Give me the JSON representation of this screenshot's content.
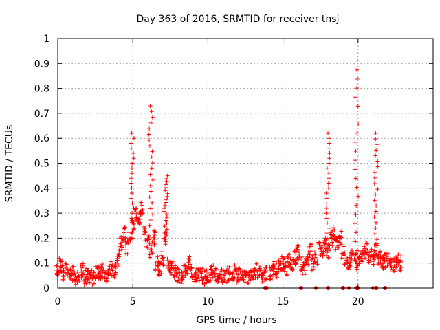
{
  "chart_data": {
    "type": "scatter",
    "title": "Day 363 of 2016, SRMTID for receiver tnsj",
    "xlabel": "GPS time / hours",
    "ylabel": "SRMTID / TECUs",
    "xlim": [
      0,
      25
    ],
    "ylim": [
      0,
      1
    ],
    "xticks": [
      0,
      5,
      10,
      15,
      20
    ],
    "yticks": [
      0,
      0.1,
      0.2,
      0.3,
      0.4,
      0.5,
      0.6,
      0.7,
      0.8,
      0.9,
      1
    ],
    "grid": true,
    "legend": "none",
    "marker": "+",
    "series_color": "#ff0000",
    "background_points": [
      [
        0.0,
        0.07
      ],
      [
        0.2,
        0.09
      ],
      [
        0.4,
        0.06
      ],
      [
        0.6,
        0.08
      ],
      [
        0.8,
        0.05
      ],
      [
        1.0,
        0.06
      ],
      [
        1.2,
        0.04
      ],
      [
        1.4,
        0.05
      ],
      [
        1.6,
        0.07
      ],
      [
        1.8,
        0.04
      ],
      [
        2.0,
        0.06
      ],
      [
        2.2,
        0.05
      ],
      [
        2.4,
        0.04
      ],
      [
        2.6,
        0.06
      ],
      [
        2.8,
        0.05
      ],
      [
        3.0,
        0.07
      ],
      [
        3.2,
        0.05
      ],
      [
        3.4,
        0.06
      ],
      [
        3.6,
        0.08
      ],
      [
        3.8,
        0.07
      ],
      [
        4.0,
        0.12
      ],
      [
        4.2,
        0.18
      ],
      [
        4.4,
        0.22
      ],
      [
        4.6,
        0.16
      ],
      [
        4.8,
        0.2
      ],
      [
        5.0,
        0.25
      ],
      [
        5.2,
        0.3
      ],
      [
        5.4,
        0.28
      ],
      [
        5.6,
        0.32
      ],
      [
        5.8,
        0.22
      ],
      [
        6.0,
        0.18
      ],
      [
        6.2,
        0.15
      ],
      [
        6.4,
        0.2
      ],
      [
        6.6,
        0.1
      ],
      [
        6.8,
        0.08
      ],
      [
        7.0,
        0.12
      ],
      [
        7.2,
        0.2
      ],
      [
        7.4,
        0.1
      ],
      [
        7.6,
        0.08
      ],
      [
        7.8,
        0.06
      ],
      [
        8.0,
        0.05
      ],
      [
        8.2,
        0.04
      ],
      [
        8.4,
        0.06
      ],
      [
        8.6,
        0.08
      ],
      [
        8.8,
        0.1
      ],
      [
        9.0,
        0.07
      ],
      [
        9.2,
        0.05
      ],
      [
        9.4,
        0.06
      ],
      [
        9.6,
        0.05
      ],
      [
        9.8,
        0.04
      ],
      [
        10.0,
        0.05
      ],
      [
        10.2,
        0.06
      ],
      [
        10.4,
        0.07
      ],
      [
        10.6,
        0.05
      ],
      [
        10.8,
        0.06
      ],
      [
        11.0,
        0.05
      ],
      [
        11.2,
        0.04
      ],
      [
        11.4,
        0.06
      ],
      [
        11.6,
        0.05
      ],
      [
        11.8,
        0.07
      ],
      [
        12.0,
        0.05
      ],
      [
        12.2,
        0.06
      ],
      [
        12.4,
        0.05
      ],
      [
        12.6,
        0.04
      ],
      [
        12.8,
        0.06
      ],
      [
        13.0,
        0.05
      ],
      [
        13.2,
        0.07
      ],
      [
        13.4,
        0.06
      ],
      [
        13.6,
        0.05
      ],
      [
        13.8,
        0.06
      ],
      [
        14.2,
        0.06
      ],
      [
        14.4,
        0.08
      ],
      [
        14.6,
        0.07
      ],
      [
        14.8,
        0.09
      ],
      [
        15.0,
        0.1
      ],
      [
        15.2,
        0.08
      ],
      [
        15.4,
        0.11
      ],
      [
        15.6,
        0.09
      ],
      [
        15.8,
        0.12
      ],
      [
        16.0,
        0.14
      ],
      [
        16.2,
        0.1
      ],
      [
        16.4,
        0.08
      ],
      [
        16.6,
        0.12
      ],
      [
        16.8,
        0.15
      ],
      [
        17.0,
        0.1
      ],
      [
        17.2,
        0.12
      ],
      [
        17.4,
        0.16
      ],
      [
        17.6,
        0.14
      ],
      [
        17.8,
        0.18
      ],
      [
        18.0,
        0.15
      ],
      [
        18.2,
        0.2
      ],
      [
        18.4,
        0.22
      ],
      [
        18.6,
        0.18
      ],
      [
        18.8,
        0.2
      ],
      [
        19.0,
        0.14
      ],
      [
        19.2,
        0.12
      ],
      [
        19.4,
        0.1
      ],
      [
        19.6,
        0.13
      ],
      [
        19.8,
        0.11
      ],
      [
        20.0,
        0.1
      ],
      [
        20.2,
        0.12
      ],
      [
        20.4,
        0.14
      ],
      [
        20.6,
        0.16
      ],
      [
        20.8,
        0.13
      ],
      [
        21.0,
        0.12
      ],
      [
        21.2,
        0.15
      ],
      [
        21.4,
        0.12
      ],
      [
        21.6,
        0.1
      ],
      [
        21.8,
        0.11
      ],
      [
        22.0,
        0.12
      ],
      [
        22.2,
        0.1
      ],
      [
        22.4,
        0.09
      ],
      [
        22.6,
        0.11
      ],
      [
        22.8,
        0.1
      ]
    ],
    "spikes": [
      {
        "x": 5.0,
        "low": 0.2,
        "high": 0.62
      },
      {
        "x": 6.2,
        "low": 0.25,
        "high": 0.73
      },
      {
        "x": 7.2,
        "low": 0.2,
        "high": 0.45
      },
      {
        "x": 18.0,
        "low": 0.2,
        "high": 0.62
      },
      {
        "x": 19.9,
        "low": 0.15,
        "high": 0.91
      },
      {
        "x": 21.2,
        "low": 0.15,
        "high": 0.62
      }
    ],
    "zero_points": [
      13.8,
      13.9,
      16.2,
      17.2,
      18.0,
      19.0,
      19.4,
      19.9,
      20.0,
      21.0,
      21.2,
      21.8
    ]
  }
}
